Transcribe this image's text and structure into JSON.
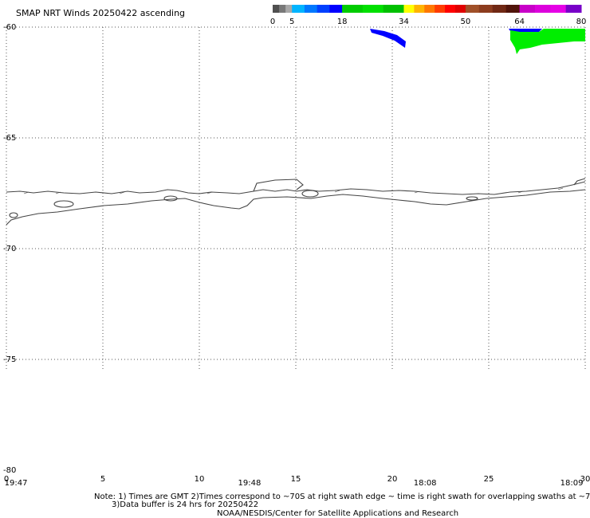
{
  "title": "SMAP NRT Winds 20250422 ascending",
  "colorbar": {
    "bins": [
      {
        "from": 0,
        "to": 5,
        "colors": [
          "#505050",
          "#787878",
          "#a8a8a8"
        ]
      },
      {
        "from": 5,
        "to": 18,
        "colors": [
          "#00b4ff",
          "#0078ff",
          "#0040ff",
          "#0000ff"
        ]
      },
      {
        "from": 18,
        "to": 34,
        "colors": [
          "#00cc00",
          "#00e000",
          "#00c000"
        ]
      },
      {
        "from": 34,
        "to": 50,
        "colors": [
          "#ffff00",
          "#ffb400",
          "#ff7800",
          "#ff3c00",
          "#ff0000",
          "#e00000"
        ]
      },
      {
        "from": 50,
        "to": 64,
        "colors": [
          "#a05028",
          "#8c3c1e",
          "#702814",
          "#50140a"
        ]
      },
      {
        "from": 64,
        "to": 80,
        "colors": [
          "#c800c8",
          "#dc00dc",
          "#e600e6",
          "#7800c8"
        ]
      }
    ],
    "labels": [
      "0",
      "5",
      "18",
      "34",
      "50",
      "64",
      "80"
    ]
  },
  "lat_labels": [
    "-60",
    "-65",
    "-70",
    "-75",
    "-80"
  ],
  "lon_labels": [
    "0",
    "5",
    "10",
    "15",
    "20",
    "25",
    "30"
  ],
  "lat_values": [
    -60,
    -65,
    -70,
    -75,
    -80
  ],
  "lon_values": [
    0,
    5,
    10,
    15,
    20,
    25,
    30
  ],
  "times": [
    {
      "lon": 0.5,
      "label": "19:47"
    },
    {
      "lon": 12.6,
      "label": "19:48"
    },
    {
      "lon": 21.7,
      "label": "18:08"
    },
    {
      "lon": 29.3,
      "label": "18:09"
    }
  ],
  "notes": {
    "line1": "Note: 1) Times are GMT 2)Times correspond to ~70S at right swath edge ~ time is right swath for overlapping swaths at ~70S",
    "line2": "3)Data buffer is 24 hrs for 20250422",
    "line3": "NOAA/NESDIS/Center for Satellite Applications and Research"
  },
  "colors": {
    "wind_blue": "#0000ff",
    "wind_green": "#00ee00"
  }
}
